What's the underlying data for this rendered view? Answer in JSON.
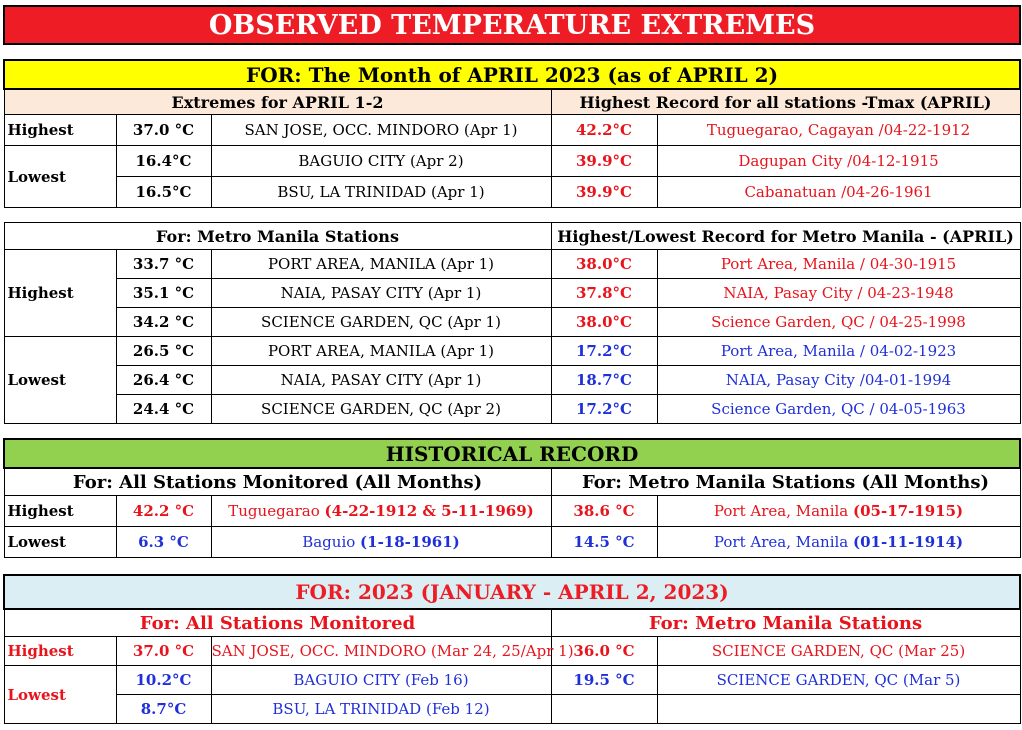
{
  "title": "OBSERVED TEMPERATURE EXTREMES",
  "month_header": "FOR:   The Month of APRIL 2023 (as of  APRIL 2)",
  "labels": {
    "highest": "Highest",
    "lowest": "Lowest"
  },
  "april": {
    "left_header": "Extremes for APRIL 1-2",
    "right_header": "Highest Record for all stations -Tmax (APRIL)",
    "rows": [
      {
        "temp": "37.0 °C",
        "station": "SAN JOSE, OCC. MINDORO  (Apr 1)",
        "rec_temp": "42.2°C",
        "rec_station": "Tuguegarao, Cagayan /04-22-1912"
      },
      {
        "temp": "16.4°C",
        "station": "BAGUIO CITY  (Apr 2)",
        "rec_temp": "39.9°C",
        "rec_station": "Dagupan City /04-12-1915"
      },
      {
        "temp": "16.5°C",
        "station": "BSU, LA TRINIDAD (Apr 1)",
        "rec_temp": "39.9°C",
        "rec_station": "Cabanatuan /04-26-1961"
      }
    ]
  },
  "metro": {
    "left_header": "For: Metro Manila Stations",
    "right_header": "Highest/Lowest Record for Metro Manila - (APRIL)",
    "highest": [
      {
        "temp": "33.7 °C",
        "station": "PORT AREA, MANILA (Apr 1)",
        "rec_temp": "38.0°C",
        "rec_station": "Port Area, Manila / 04-30-1915"
      },
      {
        "temp": "35.1 °C",
        "station": "NAIA, PASAY CITY (Apr 1)",
        "rec_temp": "37.8°C",
        "rec_station": "NAIA, Pasay City / 04-23-1948"
      },
      {
        "temp": "34.2 °C",
        "station": "SCIENCE GARDEN, QC (Apr 1)",
        "rec_temp": "38.0°C",
        "rec_station": "Science Garden, QC / 04-25-1998"
      }
    ],
    "lowest": [
      {
        "temp": "26.5 °C",
        "station": "PORT AREA, MANILA (Apr 1)",
        "rec_temp": "17.2°C",
        "rec_station": "Port Area, Manila / 04-02-1923"
      },
      {
        "temp": "26.4 °C",
        "station": "NAIA, PASAY CITY (Apr 1)",
        "rec_temp": "18.7°C",
        "rec_station": "NAIA, Pasay City /04-01-1994"
      },
      {
        "temp": "24.4 °C",
        "station": "SCIENCE GARDEN, QC (Apr 2)",
        "rec_temp": "17.2°C",
        "rec_station": "Science Garden, QC / 04-05-1963"
      }
    ]
  },
  "historical": {
    "title": "HISTORICAL RECORD",
    "left_header": "For:  All Stations Monitored (All Months)",
    "right_header": "For: Metro Manila Stations (All Months)",
    "highest": {
      "temp": "42.2 °C",
      "station": "Tuguegarao ",
      "date": "(4-22-1912 & 5-11-1969)",
      "mm_temp": "38.6 °C",
      "mm_station": "Port Area, Manila ",
      "mm_date": "(05-17-1915)"
    },
    "lowest": {
      "temp": "6.3 °C",
      "station": "Baguio ",
      "date": "(1-18-1961)",
      "mm_temp": "14.5 °C",
      "mm_station": "Port Area, Manila ",
      "mm_date": "(01-11-1914)"
    }
  },
  "year2023": {
    "title": "FOR:    2023 (JANUARY - APRIL 2, 2023)",
    "left_header": "For:  All Stations Monitored",
    "right_header": "For: Metro Manila Stations",
    "highest": {
      "temp": "37.0 °C",
      "station": "SAN JOSE, OCC. MINDORO (Mar 24, 25/Apr 1)",
      "mm_temp": "36.0 °C",
      "mm_station": "SCIENCE GARDEN, QC (Mar 25)"
    },
    "lowest": [
      {
        "temp": "10.2°C",
        "station": "BAGUIO CITY  (Feb 16)",
        "mm_temp": "19.5 °C",
        "mm_station": "SCIENCE GARDEN, QC (Mar 5)"
      },
      {
        "temp": "8.7°C",
        "station": "BSU, LA TRINIDAD (Feb 12)"
      }
    ]
  },
  "colors": {
    "title_red": "#ee1c25",
    "yellow": "#ffff00",
    "peach": "#fde9d9",
    "green": "#92d050",
    "light_blue": "#daeef3",
    "record_red": "#e8131b",
    "record_blue": "#1f30d8"
  }
}
